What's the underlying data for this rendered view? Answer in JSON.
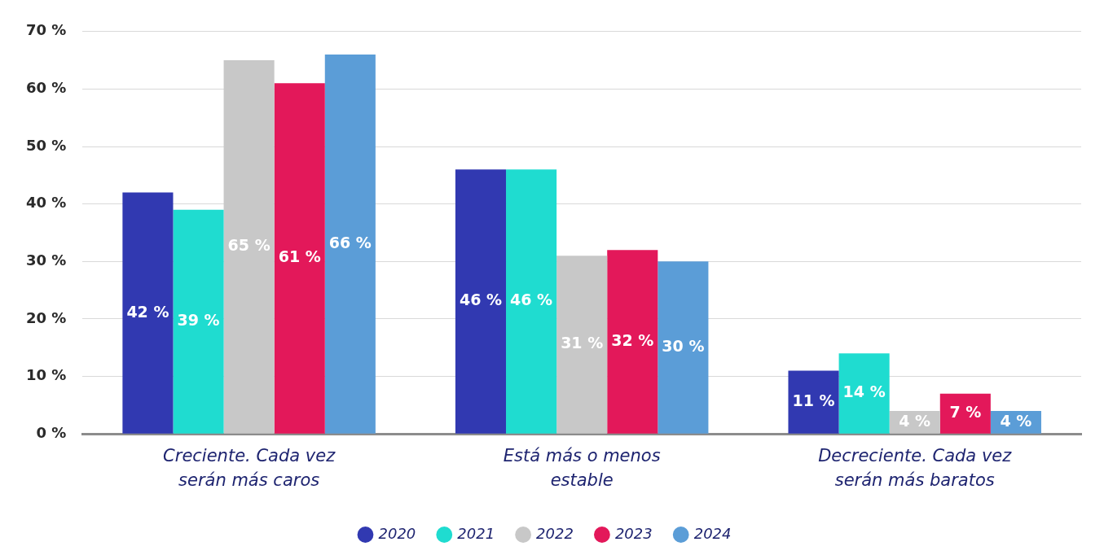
{
  "chart_data": {
    "type": "bar",
    "categories": [
      "Creciente. Cada vez serán más caros",
      "Está más o menos estable",
      "Decreciente. Cada vez serán más baratos"
    ],
    "series": [
      {
        "name": "2020",
        "color": "#3139b1",
        "values": [
          42,
          46,
          11
        ],
        "value_labels": [
          "42 %",
          "46 %",
          "11 %"
        ]
      },
      {
        "name": "2021",
        "color": "#1fdcd0",
        "values": [
          39,
          46,
          14
        ],
        "value_labels": [
          "39 %",
          "46 %",
          "14 %"
        ]
      },
      {
        "name": "2022",
        "color": "#c8c8c8",
        "values": [
          65,
          31,
          4
        ],
        "value_labels": [
          "65 %",
          "31 %",
          "4 %"
        ]
      },
      {
        "name": "2023",
        "color": "#e3185a",
        "values": [
          61,
          32,
          7
        ],
        "value_labels": [
          "61 %",
          "32 %",
          "7 %"
        ]
      },
      {
        "name": "2024",
        "color": "#5b9dd7",
        "values": [
          66,
          30,
          4
        ],
        "value_labels": [
          "66 %",
          "30 %",
          "4 %"
        ]
      }
    ],
    "ylim": [
      0,
      70
    ],
    "yticks": [
      {
        "value": 0,
        "label": "0 %"
      },
      {
        "value": 10,
        "label": "10 %"
      },
      {
        "value": 20,
        "label": "20 %"
      },
      {
        "value": 30,
        "label": "30 %"
      },
      {
        "value": 40,
        "label": "40 %"
      },
      {
        "value": 50,
        "label": "50 %"
      },
      {
        "value": 60,
        "label": "60 %"
      },
      {
        "value": 70,
        "label": "70 %"
      }
    ],
    "grid": "y",
    "legend": "bottom",
    "marker": "circle"
  }
}
